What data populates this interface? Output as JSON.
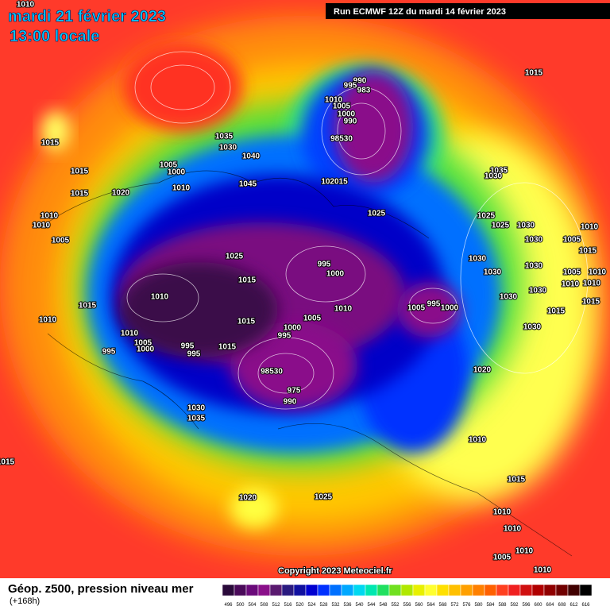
{
  "header": {
    "date": "mardi 21 février 2023",
    "time": "13:00 locale",
    "run": "Run ECMWF 12Z du mardi 14 février 2023"
  },
  "footer": {
    "title": "Géop. z500, pression niveau mer",
    "lead": "(+168h)",
    "copyright": "Copyright 2023 Meteociel.fr"
  },
  "legend": {
    "labels": [
      "496",
      "500",
      "504",
      "508",
      "512",
      "516",
      "520",
      "524",
      "528",
      "532",
      "536",
      "540",
      "544",
      "548",
      "552",
      "556",
      "560",
      "564",
      "568",
      "572",
      "576",
      "580",
      "584",
      "588",
      "592",
      "596",
      "600",
      "604",
      "608",
      "612",
      "616"
    ],
    "colors": [
      "#2a0a3a",
      "#4a0a5a",
      "#6a0a7a",
      "#8a108a",
      "#5a1a70",
      "#2a1a80",
      "#1010a0",
      "#0000d0",
      "#0030ff",
      "#0070ff",
      "#00a8ff",
      "#00d8f0",
      "#00e8b0",
      "#20e060",
      "#70e020",
      "#b0e800",
      "#e8f000",
      "#ffff30",
      "#ffe000",
      "#ffc000",
      "#ffa000",
      "#ff8000",
      "#ff6000",
      "#ff4020",
      "#f02020",
      "#d01010",
      "#b00000",
      "#900000",
      "#700000",
      "#400000",
      "#000000"
    ]
  },
  "pressure_labels": [
    "1010",
    "1015",
    "1015",
    "1015",
    "1010",
    "1010",
    "1005",
    "1015",
    "1010",
    "1010",
    "1005",
    "1000",
    "995",
    "995",
    "995",
    "1030",
    "1035",
    "1015",
    "1020",
    "1025",
    "1035",
    "1030",
    "1040",
    "1005",
    "1000",
    "1020",
    "1010",
    "1045",
    "1025",
    "1015",
    "1010",
    "1015",
    "1015",
    "990",
    "995",
    "983",
    "1010",
    "1005",
    "1000",
    "990",
    "98530",
    "102015",
    "1025",
    "995",
    "1000",
    "1010",
    "1005",
    "1000",
    "995",
    "98530",
    "975",
    "990",
    "1005",
    "995",
    "1000",
    "1015",
    "1035",
    "1030",
    "1025",
    "1025",
    "1030",
    "1030",
    "1005",
    "1010",
    "1015",
    "1030",
    "1030",
    "1030",
    "1005",
    "1010",
    "1010",
    "1010",
    "1030",
    "1030",
    "1015",
    "1015",
    "1030",
    "1020",
    "1010",
    "1015",
    "1010",
    "1010",
    "1010",
    "1005",
    "1010"
  ]
}
